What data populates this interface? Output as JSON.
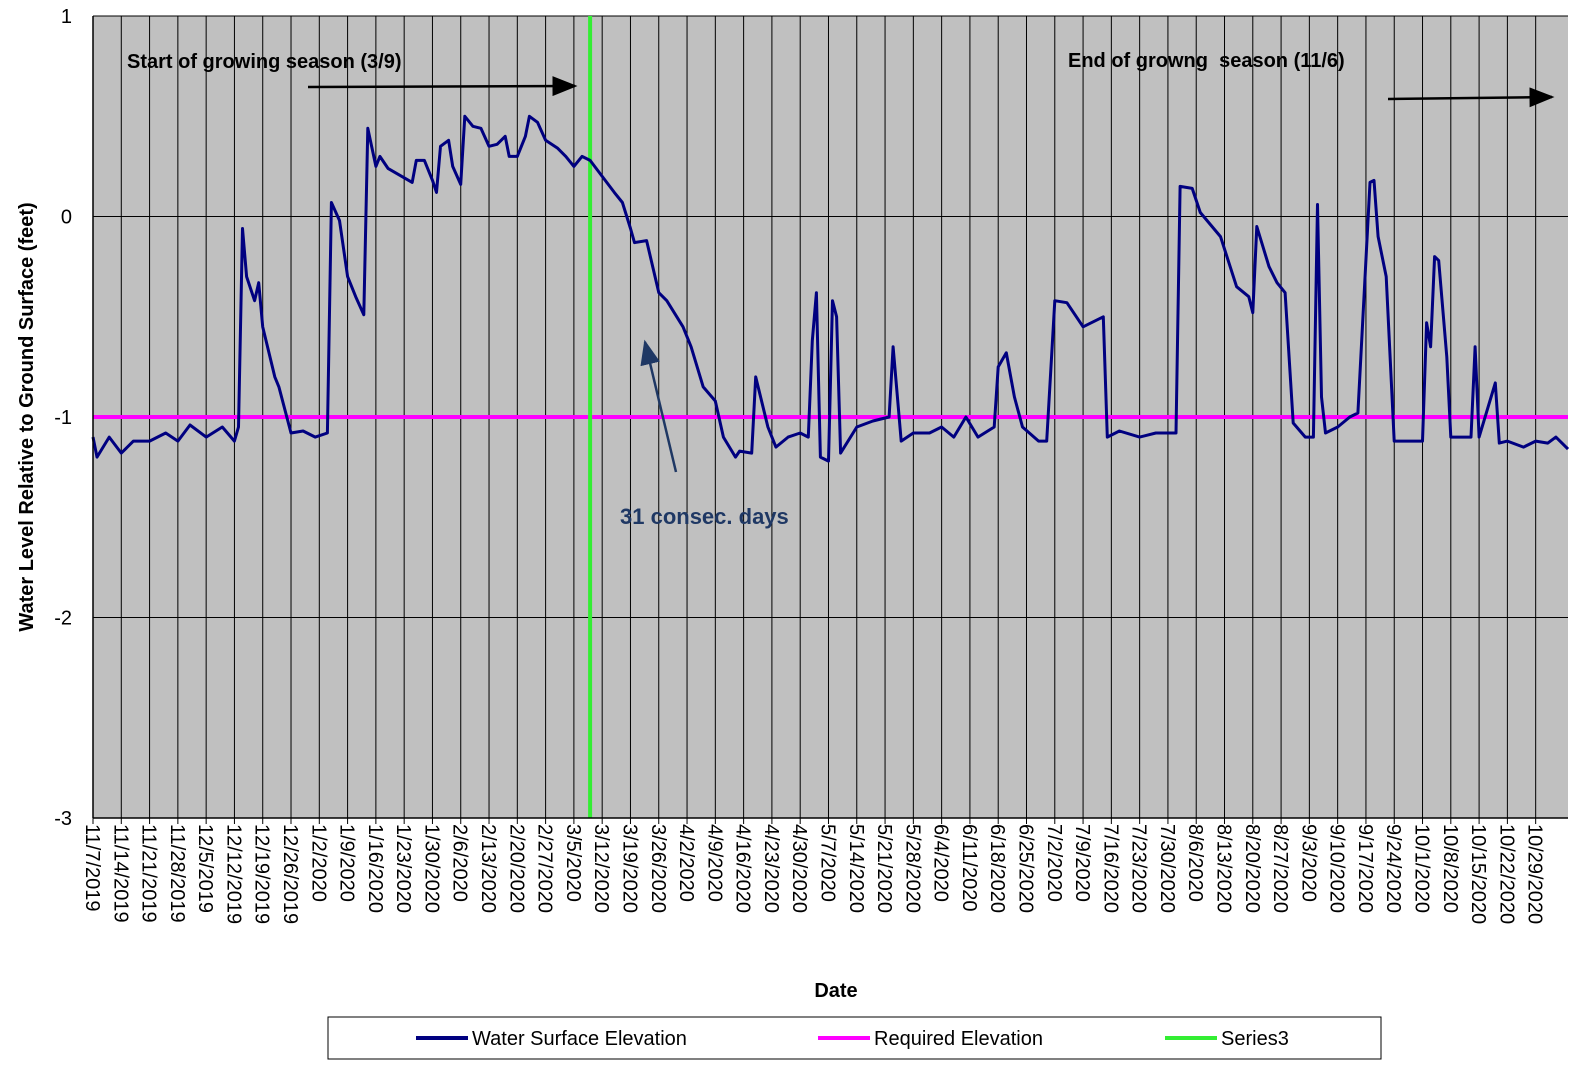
{
  "chart_data": {
    "type": "line",
    "y_label": "Water Level Relative to Ground Surface (feet)",
    "x_label": "Date",
    "annotations": [
      "Start of growing season (3/9)",
      "End of growng  season (11/6)",
      "31 consec. days"
    ],
    "xlim": [
      "11/7/2019",
      "11/6/2020"
    ],
    "xticks": [
      "11/7/2019",
      "11/14/2019",
      "11/21/2019",
      "11/28/2019",
      "12/5/2019",
      "12/12/2019",
      "12/19/2019",
      "12/26/2019",
      "1/2/2020",
      "1/9/2020",
      "1/16/2020",
      "1/23/2020",
      "1/30/2020",
      "2/6/2020",
      "2/13/2020",
      "2/20/2020",
      "2/27/2020",
      "3/5/2020",
      "3/12/2020",
      "3/19/2020",
      "3/26/2020",
      "4/2/2020",
      "4/9/2020",
      "4/16/2020",
      "4/23/2020",
      "4/30/2020",
      "5/7/2020",
      "5/14/2020",
      "5/21/2020",
      "5/28/2020",
      "6/4/2020",
      "6/11/2020",
      "6/18/2020",
      "6/25/2020",
      "7/2/2020",
      "7/9/2020",
      "7/16/2020",
      "7/23/2020",
      "7/30/2020",
      "8/6/2020",
      "8/13/2020",
      "8/20/2020",
      "8/27/2020",
      "9/3/2020",
      "9/10/2020",
      "9/17/2020",
      "9/24/2020",
      "10/1/2020",
      "10/8/2020",
      "10/15/2020",
      "10/22/2020",
      "10/29/2020"
    ],
    "ylim": [
      -3,
      1
    ],
    "yticks": [
      -3,
      -2,
      -1,
      0,
      1
    ],
    "grid": true,
    "legend": "bottom",
    "series": [
      {
        "name": "Water Surface Elevation",
        "color": "#000080",
        "x": [
          "11/7/2019",
          "11/8/2019",
          "11/11/2019",
          "11/14/2019",
          "11/17/2019",
          "11/21/2019",
          "11/25/2019",
          "11/28/2019",
          "12/1/2019",
          "12/5/2019",
          "12/9/2019",
          "12/12/2019",
          "12/13/2019",
          "12/14/2019",
          "12/15/2019",
          "12/17/2019",
          "12/18/2019",
          "12/19/2019",
          "12/22/2019",
          "12/23/2019",
          "12/26/2019",
          "12/29/2019",
          "1/1/2020",
          "1/4/2020",
          "1/5/2020",
          "1/7/2020",
          "1/9/2020",
          "1/11/2020",
          "1/13/2020",
          "1/14/2020",
          "1/16/2020",
          "1/17/2020",
          "1/19/2020",
          "1/25/2020",
          "1/26/2020",
          "1/28/2020",
          "1/30/2020",
          "1/31/2020",
          "2/1/2020",
          "2/3/2020",
          "2/4/2020",
          "2/6/2020",
          "2/7/2020",
          "2/9/2020",
          "2/11/2020",
          "2/13/2020",
          "2/15/2020",
          "2/17/2020",
          "2/18/2020",
          "2/20/2020",
          "2/22/2020",
          "2/23/2020",
          "2/25/2020",
          "2/27/2020",
          "3/1/2020",
          "3/3/2020",
          "3/5/2020",
          "3/7/2020",
          "3/9/2020",
          "3/12/2020",
          "3/15/2020",
          "3/17/2020",
          "3/19/2020",
          "3/20/2020",
          "3/23/2020",
          "3/26/2020",
          "3/28/2020",
          "4/1/2020",
          "4/3/2020",
          "4/6/2020",
          "4/9/2020",
          "4/11/2020",
          "4/14/2020",
          "4/15/2020",
          "4/18/2020",
          "4/19/2020",
          "4/22/2020",
          "4/24/2020",
          "4/27/2020",
          "4/30/2020",
          "5/2/2020",
          "5/3/2020",
          "5/4/2020",
          "5/5/2020",
          "5/7/2020",
          "5/8/2020",
          "5/9/2020",
          "5/10/2020",
          "5/14/2020",
          "5/18/2020",
          "5/22/2020",
          "5/23/2020",
          "5/25/2020",
          "5/28/2020",
          "6/1/2020",
          "6/4/2020",
          "6/7/2020",
          "6/10/2020",
          "6/13/2020",
          "6/17/2020",
          "6/18/2020",
          "6/20/2020",
          "6/22/2020",
          "6/24/2020",
          "6/28/2020",
          "6/30/2020",
          "7/2/2020",
          "7/5/2020",
          "7/9/2020",
          "7/12/2020",
          "7/14/2020",
          "7/15/2020",
          "7/18/2020",
          "7/23/2020",
          "7/27/2020",
          "8/1/2020",
          "8/2/2020",
          "8/5/2020",
          "8/7/2020",
          "8/12/2020",
          "8/16/2020",
          "8/19/2020",
          "8/20/2020",
          "8/21/2020",
          "8/24/2020",
          "8/26/2020",
          "8/28/2020",
          "8/30/2020",
          "9/2/2020",
          "9/4/2020",
          "9/5/2020",
          "9/6/2020",
          "9/7/2020",
          "9/10/2020",
          "9/13/2020",
          "9/15/2020",
          "9/18/2020",
          "9/19/2020",
          "9/20/2020",
          "9/22/2020",
          "9/24/2020",
          "9/28/2020",
          "10/1/2020",
          "10/2/2020",
          "10/3/2020",
          "10/4/2020",
          "10/5/2020",
          "10/7/2020",
          "10/8/2020",
          "10/13/2020",
          "10/14/2020",
          "10/15/2020",
          "10/19/2020",
          "10/20/2020",
          "10/22/2020",
          "10/26/2020",
          "10/29/2020",
          "11/1/2020",
          "11/3/2020",
          "11/6/2020"
        ],
        "values": [
          -1.1,
          -1.2,
          -1.1,
          -1.18,
          -1.12,
          -1.12,
          -1.08,
          -1.12,
          -1.04,
          -1.1,
          -1.05,
          -1.12,
          -1.05,
          -0.06,
          -0.3,
          -0.42,
          -0.33,
          -0.55,
          -0.8,
          -0.85,
          -1.08,
          -1.07,
          -1.1,
          -1.08,
          0.07,
          -0.02,
          -0.3,
          -0.4,
          -0.49,
          0.44,
          0.25,
          0.3,
          0.24,
          0.17,
          0.28,
          0.28,
          0.18,
          0.12,
          0.35,
          0.38,
          0.25,
          0.16,
          0.5,
          0.45,
          0.44,
          0.35,
          0.36,
          0.4,
          0.3,
          0.3,
          0.4,
          0.5,
          0.47,
          0.38,
          0.34,
          0.3,
          0.25,
          0.3,
          0.28,
          0.2,
          0.12,
          0.07,
          -0.06,
          -0.13,
          -0.12,
          -0.38,
          -0.42,
          -0.55,
          -0.65,
          -0.85,
          -0.92,
          -1.1,
          -1.2,
          -1.17,
          -1.18,
          -0.8,
          -1.05,
          -1.15,
          -1.1,
          -1.08,
          -1.1,
          -0.62,
          -0.38,
          -1.2,
          -1.22,
          -0.42,
          -0.5,
          -1.18,
          -1.05,
          -1.02,
          -1.0,
          -0.65,
          -1.12,
          -1.08,
          -1.08,
          -1.05,
          -1.1,
          -1.0,
          -1.1,
          -1.05,
          -0.75,
          -0.68,
          -0.9,
          -1.05,
          -1.12,
          -1.12,
          -0.42,
          -0.43,
          -0.55,
          -0.52,
          -0.5,
          -1.1,
          -1.07,
          -1.1,
          -1.08,
          -1.08,
          0.15,
          0.14,
          0.02,
          -0.1,
          -0.35,
          -0.4,
          -0.48,
          -0.05,
          -0.25,
          -0.33,
          -0.38,
          -1.03,
          -1.1,
          -1.1,
          0.06,
          -0.9,
          -1.08,
          -1.05,
          -1.0,
          -0.98,
          0.17,
          0.18,
          -0.1,
          -0.3,
          -1.12,
          -1.12,
          -1.12,
          -0.53,
          -0.65,
          -0.2,
          -0.22,
          -0.7,
          -1.1,
          -1.1,
          -0.65,
          -1.1,
          -0.83,
          -1.13,
          -1.12,
          -1.15,
          -1.12,
          -1.13,
          -1.1,
          -1.16
        ]
      },
      {
        "name": "Required Elevation",
        "color": "#ff00ff",
        "x": [
          "11/7/2019",
          "11/6/2020"
        ],
        "values": [
          -1,
          -1
        ]
      },
      {
        "name": "Series3",
        "color": "#33ee33",
        "x": [
          "3/9/2020",
          "3/9/2020"
        ],
        "values": [
          -3,
          1
        ]
      }
    ]
  }
}
